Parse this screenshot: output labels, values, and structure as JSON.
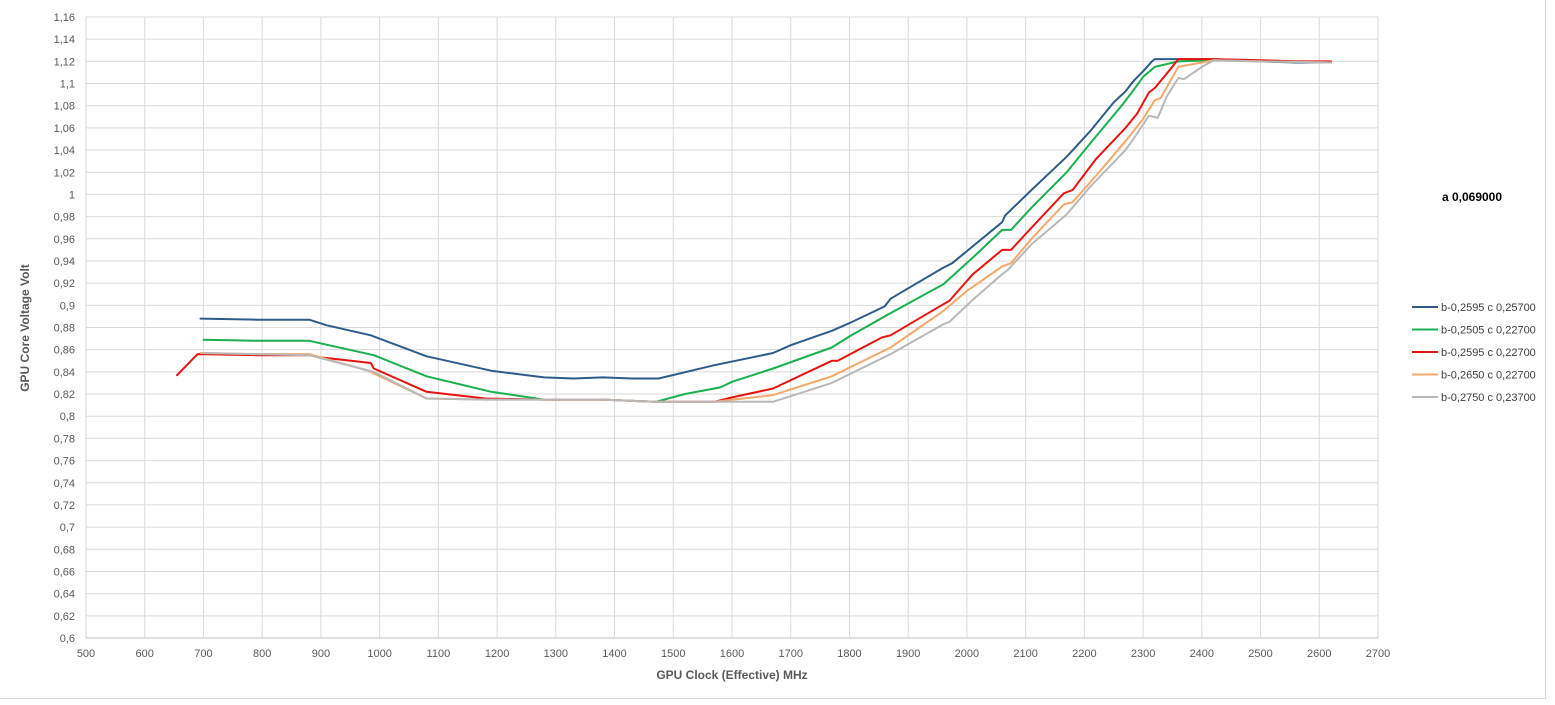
{
  "chart_data": {
    "type": "line",
    "xlabel": "GPU Clock (Effective) MHz",
    "ylabel": "GPU Core Voltage  Volt",
    "xlim": [
      500,
      2700
    ],
    "ylim": [
      0.6,
      1.16
    ],
    "xticks": [
      "500",
      "600",
      "700",
      "800",
      "900",
      "1000",
      "1100",
      "1200",
      "1300",
      "1400",
      "1500",
      "1600",
      "1700",
      "1800",
      "1900",
      "2000",
      "2100",
      "2200",
      "2300",
      "2400",
      "2500",
      "2600",
      "2700"
    ],
    "yticks": [
      "0,6",
      "0,62",
      "0,64",
      "0,66",
      "0,68",
      "0,7",
      "0,72",
      "0,74",
      "0,76",
      "0,78",
      "0,8",
      "0,82",
      "0,84",
      "0,86",
      "0,88",
      "0,9",
      "0,92",
      "0,94",
      "0,96",
      "0,98",
      "1",
      "1,02",
      "1,04",
      "1,06",
      "1,08",
      "1,1",
      "1,12",
      "1,14",
      "1,16"
    ],
    "grid": true,
    "legend_position": "right",
    "annotation": "a 0,069000",
    "series": [
      {
        "name": "b-0,2595 c 0,25700",
        "color": "#2e5c8a",
        "points": [
          [
            695,
            0.888
          ],
          [
            790,
            0.887
          ],
          [
            880,
            0.887
          ],
          [
            910,
            0.882
          ],
          [
            985,
            0.873
          ],
          [
            1080,
            0.854
          ],
          [
            1190,
            0.841
          ],
          [
            1280,
            0.835
          ],
          [
            1330,
            0.834
          ],
          [
            1380,
            0.835
          ],
          [
            1430,
            0.834
          ],
          [
            1475,
            0.834
          ],
          [
            1570,
            0.846
          ],
          [
            1670,
            0.857
          ],
          [
            1700,
            0.864
          ],
          [
            1770,
            0.877
          ],
          [
            1800,
            0.884
          ],
          [
            1860,
            0.899
          ],
          [
            1870,
            0.906
          ],
          [
            1960,
            0.934
          ],
          [
            1975,
            0.938
          ],
          [
            2060,
            0.975
          ],
          [
            2065,
            0.981
          ],
          [
            2110,
            1.004
          ],
          [
            2170,
            1.034
          ],
          [
            2210,
            1.057
          ],
          [
            2250,
            1.083
          ],
          [
            2270,
            1.093
          ],
          [
            2285,
            1.103
          ],
          [
            2300,
            1.111
          ],
          [
            2315,
            1.12
          ],
          [
            2320,
            1.122
          ],
          [
            2360,
            1.122
          ],
          [
            2420,
            1.122
          ],
          [
            2500,
            1.12
          ],
          [
            2560,
            1.119
          ],
          [
            2620,
            1.119
          ]
        ]
      },
      {
        "name": "b-0,2505 c 0,22700",
        "color": "#1ab04f",
        "points": [
          [
            700,
            0.869
          ],
          [
            790,
            0.868
          ],
          [
            880,
            0.868
          ],
          [
            990,
            0.855
          ],
          [
            1080,
            0.836
          ],
          [
            1190,
            0.822
          ],
          [
            1280,
            0.815
          ],
          [
            1380,
            0.815
          ],
          [
            1470,
            0.813
          ],
          [
            1520,
            0.82
          ],
          [
            1580,
            0.826
          ],
          [
            1600,
            0.831
          ],
          [
            1670,
            0.843
          ],
          [
            1770,
            0.862
          ],
          [
            1800,
            0.872
          ],
          [
            1870,
            0.893
          ],
          [
            1960,
            0.919
          ],
          [
            2010,
            0.943
          ],
          [
            2060,
            0.968
          ],
          [
            2075,
            0.968
          ],
          [
            2110,
            0.988
          ],
          [
            2170,
            1.02
          ],
          [
            2210,
            1.046
          ],
          [
            2265,
            1.081
          ],
          [
            2285,
            1.095
          ],
          [
            2300,
            1.106
          ],
          [
            2320,
            1.115
          ],
          [
            2360,
            1.12
          ],
          [
            2420,
            1.121
          ],
          [
            2500,
            1.12
          ],
          [
            2560,
            1.12
          ],
          [
            2620,
            1.119
          ]
        ]
      },
      {
        "name": "b-0,2595 c 0,22700",
        "color": "#e8130f",
        "points": [
          [
            655,
            0.837
          ],
          [
            690,
            0.856
          ],
          [
            790,
            0.855
          ],
          [
            880,
            0.855
          ],
          [
            900,
            0.853
          ],
          [
            985,
            0.848
          ],
          [
            990,
            0.843
          ],
          [
            1080,
            0.822
          ],
          [
            1180,
            0.816
          ],
          [
            1280,
            0.815
          ],
          [
            1380,
            0.815
          ],
          [
            1470,
            0.813
          ],
          [
            1570,
            0.813
          ],
          [
            1600,
            0.817
          ],
          [
            1670,
            0.825
          ],
          [
            1770,
            0.85
          ],
          [
            1780,
            0.85
          ],
          [
            1855,
            0.871
          ],
          [
            1870,
            0.873
          ],
          [
            1960,
            0.901
          ],
          [
            1970,
            0.904
          ],
          [
            2010,
            0.928
          ],
          [
            2060,
            0.95
          ],
          [
            2075,
            0.95
          ],
          [
            2110,
            0.97
          ],
          [
            2165,
            1.001
          ],
          [
            2180,
            1.004
          ],
          [
            2220,
            1.032
          ],
          [
            2270,
            1.06
          ],
          [
            2290,
            1.073
          ],
          [
            2310,
            1.092
          ],
          [
            2320,
            1.096
          ],
          [
            2345,
            1.112
          ],
          [
            2360,
            1.122
          ],
          [
            2420,
            1.122
          ],
          [
            2500,
            1.121
          ],
          [
            2560,
            1.12
          ],
          [
            2620,
            1.12
          ]
        ]
      },
      {
        "name": "b-0,2650 c 0,22700",
        "color": "#f4a86a",
        "points": [
          [
            695,
            0.857
          ],
          [
            790,
            0.856
          ],
          [
            880,
            0.856
          ],
          [
            980,
            0.841
          ],
          [
            1080,
            0.816
          ],
          [
            1180,
            0.815
          ],
          [
            1280,
            0.815
          ],
          [
            1380,
            0.815
          ],
          [
            1470,
            0.813
          ],
          [
            1570,
            0.813
          ],
          [
            1670,
            0.819
          ],
          [
            1770,
            0.836
          ],
          [
            1870,
            0.862
          ],
          [
            1960,
            0.895
          ],
          [
            2000,
            0.913
          ],
          [
            2060,
            0.935
          ],
          [
            2075,
            0.938
          ],
          [
            2110,
            0.96
          ],
          [
            2165,
            0.991
          ],
          [
            2180,
            0.993
          ],
          [
            2220,
            1.017
          ],
          [
            2270,
            1.048
          ],
          [
            2300,
            1.068
          ],
          [
            2320,
            1.085
          ],
          [
            2330,
            1.087
          ],
          [
            2360,
            1.115
          ],
          [
            2400,
            1.119
          ],
          [
            2420,
            1.121
          ],
          [
            2500,
            1.12
          ],
          [
            2620,
            1.119
          ]
        ]
      },
      {
        "name": "b-0,2750 c 0,23700",
        "color": "#b8b8b8",
        "points": [
          [
            700,
            0.857
          ],
          [
            790,
            0.856
          ],
          [
            880,
            0.855
          ],
          [
            990,
            0.84
          ],
          [
            1080,
            0.816
          ],
          [
            1180,
            0.815
          ],
          [
            1280,
            0.815
          ],
          [
            1380,
            0.815
          ],
          [
            1470,
            0.813
          ],
          [
            1570,
            0.813
          ],
          [
            1670,
            0.813
          ],
          [
            1770,
            0.83
          ],
          [
            1870,
            0.856
          ],
          [
            1960,
            0.883
          ],
          [
            1970,
            0.885
          ],
          [
            2010,
            0.905
          ],
          [
            2060,
            0.928
          ],
          [
            2070,
            0.932
          ],
          [
            2110,
            0.955
          ],
          [
            2170,
            0.982
          ],
          [
            2210,
            1.007
          ],
          [
            2270,
            1.04
          ],
          [
            2290,
            1.055
          ],
          [
            2310,
            1.071
          ],
          [
            2325,
            1.069
          ],
          [
            2340,
            1.088
          ],
          [
            2360,
            1.105
          ],
          [
            2370,
            1.104
          ],
          [
            2400,
            1.115
          ],
          [
            2420,
            1.121
          ],
          [
            2500,
            1.12
          ],
          [
            2620,
            1.119
          ]
        ]
      }
    ]
  }
}
